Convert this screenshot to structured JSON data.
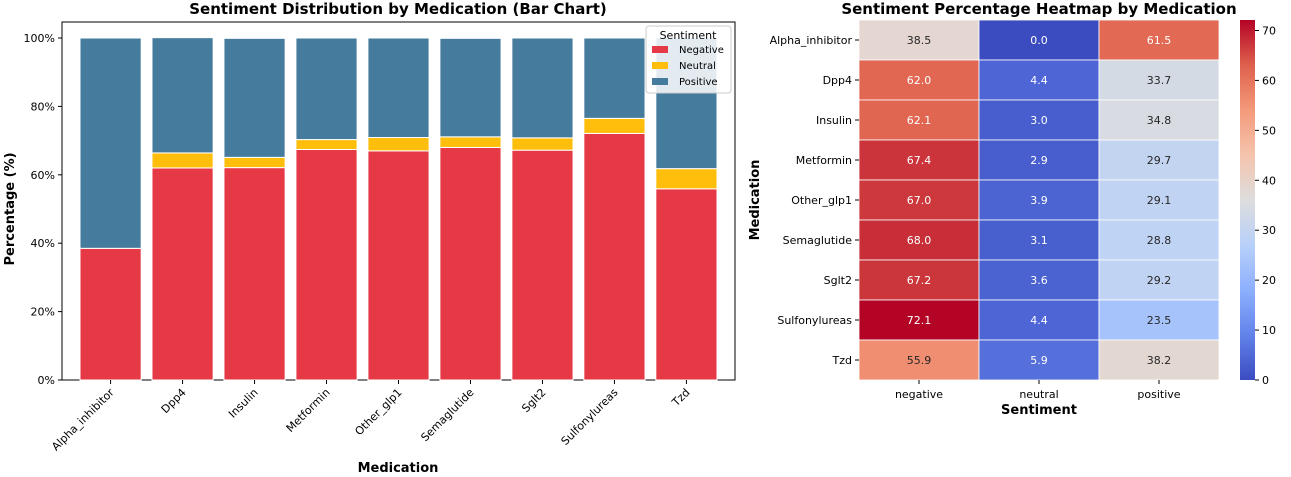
{
  "chart_data": [
    {
      "type": "bar",
      "stacked": true,
      "title": "Sentiment Distribution by Medication (Bar Chart)",
      "xlabel": "Medication",
      "ylabel": "Percentage (%)",
      "ylim": [
        0,
        100
      ],
      "yticks": [
        "0%",
        "20%",
        "40%",
        "60%",
        "80%",
        "100%"
      ],
      "categories": [
        "Alpha_inhibitor",
        "Dpp4",
        "Insulin",
        "Metformin",
        "Other_glp1",
        "Semaglutide",
        "Sglt2",
        "Sulfonylureas",
        "Tzd"
      ],
      "series": [
        {
          "name": "Negative",
          "color": "#e63946",
          "values": [
            38.5,
            62.0,
            62.1,
            67.4,
            67.0,
            68.0,
            67.2,
            72.1,
            55.9
          ]
        },
        {
          "name": "Neutral",
          "color": "#ffbe0b",
          "values": [
            0.0,
            4.4,
            3.0,
            2.9,
            3.9,
            3.1,
            3.6,
            4.4,
            5.9
          ]
        },
        {
          "name": "Positive",
          "color": "#457b9d",
          "values": [
            61.5,
            33.7,
            34.8,
            29.7,
            29.1,
            28.8,
            29.2,
            23.5,
            38.2
          ]
        }
      ],
      "legend": {
        "title": "Sentiment",
        "placement": "top-right"
      }
    },
    {
      "type": "heatmap",
      "title": "Sentiment Percentage Heatmap by Medication",
      "xlabel": "Sentiment",
      "ylabel": "Medication",
      "x_categories": [
        "negative",
        "neutral",
        "positive"
      ],
      "y_categories": [
        "Alpha_inhibitor",
        "Dpp4",
        "Insulin",
        "Metformin",
        "Other_glp1",
        "Semaglutide",
        "Sglt2",
        "Sulfonylureas",
        "Tzd"
      ],
      "values": [
        [
          38.5,
          0.0,
          61.5
        ],
        [
          62.0,
          4.4,
          33.7
        ],
        [
          62.1,
          3.0,
          34.8
        ],
        [
          67.4,
          2.9,
          29.7
        ],
        [
          67.0,
          3.9,
          29.1
        ],
        [
          68.0,
          3.1,
          28.8
        ],
        [
          67.2,
          3.6,
          29.2
        ],
        [
          72.1,
          4.4,
          23.5
        ],
        [
          55.9,
          5.9,
          38.2
        ]
      ],
      "colormap": "coolwarm",
      "vmin": 0,
      "vmax": 72.1,
      "colorbar_ticks": [
        "0",
        "10",
        "20",
        "30",
        "40",
        "50",
        "60",
        "70"
      ]
    }
  ]
}
